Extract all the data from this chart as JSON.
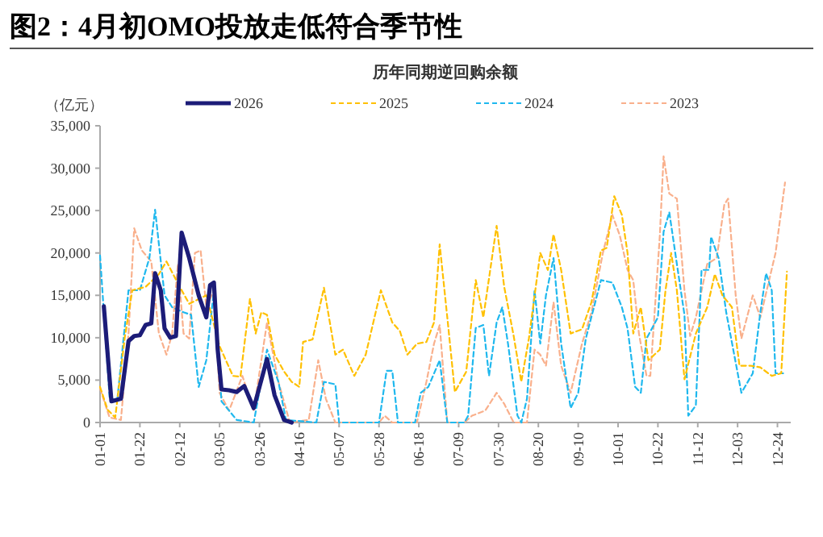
{
  "chart_data": {
    "type": "line",
    "title": "图2：4月初OMO投放走低符合季节性",
    "subtitle": "历年同期逆回购余额",
    "ylabel": "（亿元）",
    "ylim": [
      0,
      35000
    ],
    "yticks": [
      0,
      {
        "value": 5000,
        "label": "5,000"
      },
      {
        "value": 10000,
        "label": "10,000"
      },
      {
        "value": 15000,
        "label": "15,000"
      },
      {
        "value": 20000,
        "label": "20,000"
      },
      {
        "value": 25000,
        "label": "25,000"
      },
      {
        "value": 30000,
        "label": "30,000"
      },
      {
        "value": 35000,
        "label": "35,000"
      }
    ],
    "xlim": [
      "--01-01",
      "--12-31"
    ],
    "xticks": [
      {
        "value": "--01-01",
        "label": "01-01"
      },
      {
        "value": "--01-22",
        "label": "01-22"
      },
      {
        "value": "--02-12",
        "label": "02-12"
      },
      {
        "value": "--03-05",
        "label": "03-05"
      },
      {
        "value": "--03-26",
        "label": "03-26"
      },
      {
        "value": "--04-16",
        "label": "04-16"
      },
      {
        "value": "--05-07",
        "label": "05-07"
      },
      {
        "value": "--05-28",
        "label": "05-28"
      },
      {
        "value": "--06-18",
        "label": "06-18"
      },
      {
        "value": "--07-09",
        "label": "07-09"
      },
      {
        "value": "--07-30",
        "label": "07-30"
      },
      {
        "value": "--08-20",
        "label": "08-20"
      },
      {
        "value": "--09-10",
        "label": "09-10"
      },
      {
        "value": "--10-01",
        "label": "10-01"
      },
      {
        "value": "--10-22",
        "label": "10-22"
      },
      {
        "value": "--11-12",
        "label": "11-12"
      },
      {
        "value": "--12-03",
        "label": "12-03"
      },
      {
        "value": "--12-24",
        "label": "12-24"
      }
    ],
    "legend": "top",
    "grid": false,
    "series": [
      {
        "name": "2026",
        "color": "#1c1c78",
        "line_style": "solid",
        "x": [
          "--01-03",
          "--01-07",
          "--01-12",
          "--01-16",
          "--01-19",
          "--01-22",
          "--01-25",
          "--01-28",
          "--01-30",
          "--02-02",
          "--02-04",
          "--02-07",
          "--02-10",
          "--02-13",
          "--02-17",
          "--02-22",
          "--02-26",
          "--02-28",
          "--03-02",
          "--03-04",
          "--03-06",
          "--03-10",
          "--03-14",
          "--03-18",
          "--03-23",
          "--03-30",
          "--04-03",
          "--04-08",
          "--04-12"
        ],
        "values": [
          13700,
          2500,
          2800,
          9600,
          10200,
          10300,
          11500,
          11700,
          17600,
          15600,
          11100,
          10000,
          10200,
          22400,
          19400,
          15000,
          12400,
          16200,
          16500,
          8600,
          3900,
          3800,
          3600,
          4300,
          1700,
          7500,
          3200,
          300,
          0
        ]
      },
      {
        "name": "2025",
        "color": "#ffc000",
        "line_style": "dashed",
        "x": [
          "--01-01",
          "--01-05",
          "--01-09",
          "--01-14",
          "--01-18",
          "--01-25",
          "--02-01",
          "--02-05",
          "--02-12",
          "--02-17",
          "--02-26",
          "--03-05",
          "--03-08",
          "--03-12",
          "--03-16",
          "--03-21",
          "--03-24",
          "--03-27",
          "--03-30",
          "--04-03",
          "--04-08",
          "--04-12",
          "--04-16",
          "--04-18",
          "--04-23",
          "--04-29",
          "--05-05",
          "--05-09",
          "--05-15",
          "--05-21",
          "--05-29",
          "--06-04",
          "--06-08",
          "--06-12",
          "--06-17",
          "--06-22",
          "--06-26",
          "--06-29",
          "--07-03",
          "--07-07",
          "--07-13",
          "--07-18",
          "--07-22",
          "--07-29",
          "--08-02",
          "--08-07",
          "--08-11",
          "--08-15",
          "--08-21",
          "--08-25",
          "--08-28",
          "--09-01",
          "--09-06",
          "--09-12",
          "--09-17",
          "--09-22",
          "--09-25",
          "--09-29",
          "--10-03",
          "--10-06",
          "--10-09",
          "--10-13",
          "--10-17",
          "--10-23",
          "--10-26",
          "--10-29",
          "--11-01",
          "--11-05",
          "--11-11",
          "--11-17",
          "--11-21",
          "--11-25",
          "--11-30",
          "--12-04",
          "--12-10",
          "--12-15",
          "--12-21",
          "--12-26",
          "--12-29"
        ],
        "values": [
          4200,
          1500,
          600,
          10000,
          15600,
          16000,
          17500,
          19000,
          16000,
          14000,
          15000,
          9000,
          7500,
          5500,
          5400,
          14600,
          10500,
          13000,
          12700,
          8000,
          6000,
          4800,
          4200,
          9500,
          9800,
          15900,
          8000,
          8600,
          5500,
          8000,
          15600,
          11800,
          10800,
          8000,
          9300,
          9500,
          11800,
          21000,
          12400,
          3600,
          6000,
          16800,
          12400,
          23200,
          16000,
          10200,
          4800,
          9900,
          20000,
          18000,
          22200,
          18000,
          10500,
          11000,
          14200,
          20300,
          20600,
          26700,
          24500,
          20000,
          10500,
          13600,
          7350,
          8600,
          15600,
          20000,
          15600,
          5100,
          10500,
          13600,
          17500,
          15000,
          13600,
          6700,
          6700,
          6500,
          5500,
          5800,
          17800
        ]
      },
      {
        "name": "2024",
        "color": "#1fb8ee",
        "line_style": "dashed",
        "x": [
          "--01-01",
          "--01-06",
          "--01-10",
          "--01-16",
          "--01-22",
          "--01-27",
          "--01-30",
          "--02-04",
          "--02-08",
          "--02-14",
          "--02-18",
          "--02-22",
          "--02-26",
          "--03-02",
          "--03-06",
          "--03-14",
          "--03-23",
          "--03-30",
          "--04-05",
          "--04-09",
          "--04-25",
          "--04-29",
          "--05-05",
          "--05-07",
          "--05-28",
          "--06-01",
          "--06-04",
          "--06-07",
          "--06-16",
          "--06-19",
          "--06-23",
          "--06-29",
          "--07-03",
          "--07-12",
          "--07-14",
          "--07-18",
          "--07-22",
          "--07-25",
          "--07-29",
          "--08-01",
          "--08-04",
          "--08-09",
          "--08-11",
          "--08-14",
          "--08-18",
          "--08-21",
          "--08-24",
          "--08-28",
          "--09-01",
          "--09-06",
          "--09-10",
          "--09-14",
          "--09-22",
          "--09-28",
          "--10-03",
          "--10-06",
          "--10-10",
          "--10-13",
          "--10-16",
          "--10-22",
          "--10-25",
          "--10-28",
          "--11-01",
          "--11-05",
          "--11-07",
          "--11-11",
          "--11-14",
          "--11-18",
          "--11-19",
          "--11-23",
          "--11-27",
          "--12-05",
          "--12-11",
          "--12-15",
          "--12-18",
          "--12-21",
          "--12-23",
          "--12-27"
        ],
        "values": [
          19700,
          3000,
          2500,
          15600,
          15600,
          19400,
          25100,
          15000,
          13600,
          13000,
          12700,
          4200,
          7350,
          15600,
          2500,
          300,
          0,
          8600,
          4800,
          300,
          0,
          4800,
          4500,
          0,
          0,
          6100,
          6100,
          0,
          0,
          3500,
          4200,
          7350,
          0,
          0,
          800,
          11150,
          11500,
          5500,
          11800,
          13600,
          9300,
          800,
          0,
          2800,
          15600,
          9300,
          15000,
          19400,
          9300,
          1700,
          3500,
          9900,
          16800,
          16500,
          13600,
          11100,
          4200,
          3500,
          9900,
          12400,
          22500,
          24800,
          18700,
          12700,
          800,
          2000,
          18000,
          18000,
          21900,
          19400,
          13000,
          3500,
          5800,
          13000,
          17600,
          15600,
          5800,
          5800
        ]
      },
      {
        "name": "2023",
        "color": "#f9b08c",
        "line_style": "dashed",
        "x": [
          "--01-01",
          "--01-06",
          "--01-12",
          "--01-16",
          "--01-19",
          "--01-23",
          "--01-28",
          "--02-01",
          "--02-05",
          "--02-08",
          "--02-11",
          "--02-14",
          "--02-17",
          "--02-20",
          "--02-23",
          "--02-26",
          "--03-02",
          "--03-05",
          "--03-10",
          "--03-17",
          "--03-23",
          "--03-30",
          "--04-05",
          "--04-11",
          "--04-21",
          "--04-26",
          "--04-30",
          "--05-05",
          "--05-28",
          "--05-31",
          "--06-04",
          "--06-17",
          "--06-22",
          "--06-26",
          "--06-29",
          "--07-03",
          "--07-12",
          "--07-16",
          "--07-23",
          "--07-29",
          "--08-02",
          "--08-07",
          "--08-14",
          "--08-18",
          "--08-21",
          "--08-24",
          "--08-28",
          "--09-01",
          "--09-06",
          "--09-12",
          "--09-17",
          "--09-23",
          "--09-28",
          "--10-02",
          "--10-06",
          "--10-09",
          "--10-12",
          "--10-16",
          "--10-18",
          "--10-23",
          "--10-25",
          "--10-28",
          "--11-01",
          "--11-05",
          "--11-08",
          "--11-11",
          "--11-17",
          "--11-22",
          "--11-26",
          "--11-28",
          "--12-02",
          "--12-05",
          "--12-11",
          "--12-15",
          "--12-19",
          "--12-23",
          "--12-28"
        ],
        "values": [
          4000,
          600,
          300,
          10500,
          22900,
          20300,
          19000,
          10500,
          8000,
          10500,
          18700,
          10500,
          9900,
          20000,
          20300,
          13600,
          15600,
          3500,
          1400,
          5500,
          1400,
          11800,
          4800,
          0,
          300,
          7350,
          2800,
          0,
          0,
          800,
          0,
          0,
          4800,
          9300,
          11500,
          0,
          0,
          800,
          1400,
          3500,
          2200,
          0,
          0,
          8600,
          8000,
          6700,
          14200,
          6700,
          3500,
          9300,
          13000,
          20000,
          24500,
          22000,
          18000,
          16800,
          10500,
          5500,
          5500,
          22000,
          31400,
          27000,
          26400,
          15600,
          10200,
          12400,
          18700,
          19400,
          25700,
          26400,
          15000,
          9900,
          15000,
          12400,
          16200,
          20000,
          28300
        ]
      }
    ]
  }
}
